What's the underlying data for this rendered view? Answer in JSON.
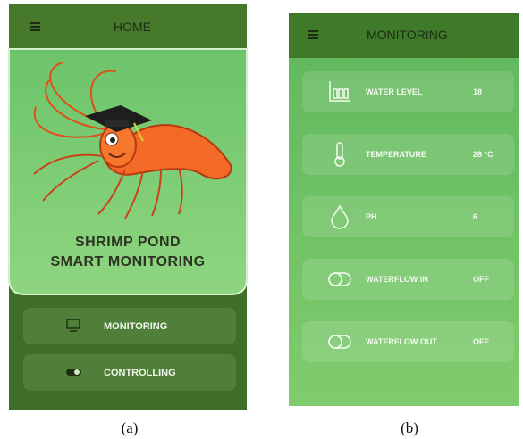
{
  "screen_a": {
    "header": "HOME",
    "title_line1": "SHRIMP POND",
    "title_line2": "SMART MONITORING",
    "buttons": [
      "MONITORING",
      "CONTROLLING"
    ],
    "caption": "(a)"
  },
  "screen_b": {
    "header": "MONITORING",
    "rows": [
      {
        "label": "WATER LEVEL",
        "value": "18"
      },
      {
        "label": "TEMPERATURE",
        "value": "28 °C"
      },
      {
        "label": "PH",
        "value": "6"
      },
      {
        "label": "WATERFLOW IN",
        "value": "OFF"
      },
      {
        "label": "WATERFLOW OUT",
        "value": "OFF"
      }
    ],
    "caption": "(b)"
  }
}
